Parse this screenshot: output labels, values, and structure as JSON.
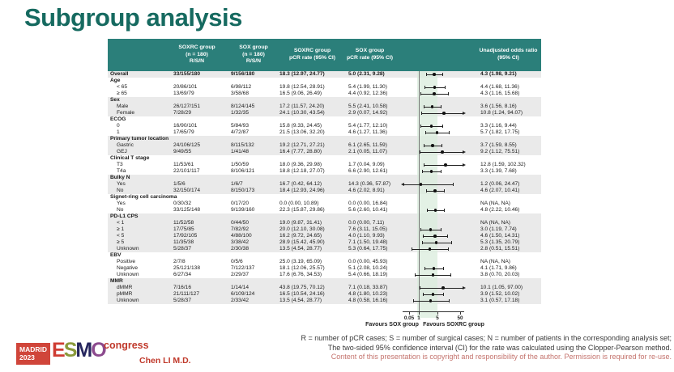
{
  "title": "Subgroup analysis",
  "colors": {
    "header_teal": "#2b7f7a",
    "title_teal": "#166a60",
    "row_shade": "#eaeaea",
    "band_green": "#d9ecdc",
    "accent_red": "#c0392b",
    "disclaimer_red": "#c4736d"
  },
  "table_headers": {
    "soxrc": [
      "SOXRC group",
      "(n = 180)",
      "R/S/N"
    ],
    "sox": [
      "SOX group",
      "(n = 180)",
      "R/S/N"
    ],
    "soxrc_pcr": [
      "SOXRC group",
      "pCR rate (95% CI)"
    ],
    "sox_pcr": [
      "SOX group",
      "pCR rate (95% CI)"
    ],
    "odds": [
      "Unadjusted odds ratio",
      "(95% CI)"
    ]
  },
  "chart_data": {
    "type": "table",
    "subtype": "forest_plot",
    "or_axis": {
      "scale": "log",
      "ticks": [
        0.05,
        1,
        5,
        50
      ],
      "ref_line": 1
    },
    "columns": [
      "Subgroup",
      "SOXRC group (n = 180) R/S/N",
      "SOX group (n = 180) R/S/N",
      "SOXRC group pCR rate (95% CI)",
      "SOX group pCR rate (95% CI)",
      "Unadjusted odds ratio (95% CI)"
    ],
    "rows": [
      {
        "type": "overall",
        "label": "Overall",
        "soxrc_rsn": "33/155/180",
        "sox_rsn": "9/156/180",
        "soxrc_pcr": "18.3 (12.97, 24.77)",
        "sox_pcr": "5.0 (2.31, 9.28)",
        "or_text": "4.3 (1.98, 9.21)",
        "or": 4.3,
        "lo": 1.98,
        "hi": 9.21,
        "shaded": true
      },
      {
        "type": "group",
        "label": "Age",
        "shaded": false
      },
      {
        "type": "data",
        "label": "< 65",
        "soxrc_rsn": "20/86/101",
        "sox_rsn": "6/98/112",
        "soxrc_pcr": "19.8 (12.54, 28.91)",
        "sox_pcr": "5.4 (1.99, 11.30)",
        "or_text": "4.4 (1.68, 11.36)",
        "or": 4.4,
        "lo": 1.68,
        "hi": 11.36,
        "shaded": false
      },
      {
        "type": "data",
        "label": "≥ 65",
        "soxrc_rsn": "13/69/79",
        "sox_rsn": "3/58/68",
        "soxrc_pcr": "16.5 (9.06, 26.49)",
        "sox_pcr": "4.4 (0.92, 12.36)",
        "or_text": "4.3 (1.16, 15.68)",
        "or": 4.3,
        "lo": 1.16,
        "hi": 15.68,
        "shaded": false
      },
      {
        "type": "group",
        "label": "Sex",
        "shaded": true
      },
      {
        "type": "data",
        "label": "Male",
        "soxrc_rsn": "26/127/151",
        "sox_rsn": "8/124/145",
        "soxrc_pcr": "17.2 (11.57, 24.20)",
        "sox_pcr": "5.5 (2.41, 10.58)",
        "or_text": "3.6 (1.56, 8.16)",
        "or": 3.6,
        "lo": 1.56,
        "hi": 8.16,
        "shaded": true
      },
      {
        "type": "data",
        "label": "Female",
        "soxrc_rsn": "7/28/29",
        "sox_rsn": "1/32/35",
        "soxrc_pcr": "24.1 (10.30, 43.54)",
        "sox_pcr": "2.9 (0.07, 14.92)",
        "or_text": "10.8 (1.24, 94.07)",
        "or": 10.8,
        "lo": 1.24,
        "hi": 94.07,
        "shaded": true
      },
      {
        "type": "group",
        "label": "ECOG",
        "shaded": false
      },
      {
        "type": "data",
        "label": "0",
        "soxrc_rsn": "16/90/101",
        "sox_rsn": "5/84/93",
        "soxrc_pcr": "15.8 (9.33, 24.45)",
        "sox_pcr": "5.4 (1.77, 12.10)",
        "or_text": "3.3 (1.16, 9.44)",
        "or": 3.3,
        "lo": 1.16,
        "hi": 9.44,
        "shaded": false
      },
      {
        "type": "data",
        "label": "1",
        "soxrc_rsn": "17/65/79",
        "sox_rsn": "4/72/87",
        "soxrc_pcr": "21.5 (13.06, 32.20)",
        "sox_pcr": "4.6 (1.27, 11.36)",
        "or_text": "5.7 (1.82, 17.75)",
        "or": 5.7,
        "lo": 1.82,
        "hi": 17.75,
        "shaded": false
      },
      {
        "type": "group",
        "label": "Primary tumor location",
        "shaded": true
      },
      {
        "type": "data",
        "label": "Gastric",
        "soxrc_rsn": "24/106/125",
        "sox_rsn": "8/115/132",
        "soxrc_pcr": "19.2 (12.71, 27.21)",
        "sox_pcr": "6.1 (2.65, 11.59)",
        "or_text": "3.7 (1.59, 8.55)",
        "or": 3.7,
        "lo": 1.59,
        "hi": 8.55,
        "shaded": true
      },
      {
        "type": "data",
        "label": "GEJ",
        "soxrc_rsn": "9/49/55",
        "sox_rsn": "1/41/48",
        "soxrc_pcr": "16.4 (7.77, 28.80)",
        "sox_pcr": "2.1 (0.05, 11.07)",
        "or_text": "9.2 (1.12, 75.51)",
        "or": 9.2,
        "lo": 1.12,
        "hi": 75.51,
        "shaded": true
      },
      {
        "type": "group",
        "label": "Clinical T stage",
        "shaded": false
      },
      {
        "type": "data",
        "label": "T3",
        "soxrc_rsn": "11/53/61",
        "sox_rsn": "1/50/59",
        "soxrc_pcr": "18.0 (9.36, 29.98)",
        "sox_pcr": "1.7 (0.04, 9.09)",
        "or_text": "12.8 (1.59, 102.32)",
        "or": 12.8,
        "lo": 1.59,
        "hi": 102.32,
        "shaded": false
      },
      {
        "type": "data",
        "label": "T4a",
        "soxrc_rsn": "22/101/117",
        "sox_rsn": "8/106/121",
        "soxrc_pcr": "18.8 (12.18, 27.07)",
        "sox_pcr": "6.6 (2.90, 12.61)",
        "or_text": "3.3 (1.39, 7.68)",
        "or": 3.3,
        "lo": 1.39,
        "hi": 7.68,
        "shaded": false
      },
      {
        "type": "group",
        "label": "Bulky N",
        "shaded": true
      },
      {
        "type": "data",
        "label": "Yes",
        "soxrc_rsn": "1/5/6",
        "sox_rsn": "1/6/7",
        "soxrc_pcr": "16.7 (0.42, 64.12)",
        "sox_pcr": "14.3 (0.36, 57.87)",
        "or_text": "1.2 (0.06, 24.47)",
        "or": 1.2,
        "lo": 0.06,
        "hi": 24.47,
        "shaded": true
      },
      {
        "type": "data",
        "label": "No",
        "soxrc_rsn": "32/150/174",
        "sox_rsn": "8/150/173",
        "soxrc_pcr": "18.4 (12.93, 24.96)",
        "sox_pcr": "4.6 (2.02, 8.91)",
        "or_text": "4.6 (2.07, 10.41)",
        "or": 4.6,
        "lo": 2.07,
        "hi": 10.41,
        "shaded": true
      },
      {
        "type": "group",
        "label": "Signet-ring cell carcinoma",
        "shaded": false
      },
      {
        "type": "data",
        "label": "Yes",
        "soxrc_rsn": "0/30/32",
        "sox_rsn": "0/17/20",
        "soxrc_pcr": "0.0 (0.00, 10.89)",
        "sox_pcr": "0.0 (0.00, 16.84)",
        "or_text": "NA (NA, NA)",
        "or": null,
        "lo": null,
        "hi": null,
        "shaded": false
      },
      {
        "type": "data",
        "label": "No",
        "soxrc_rsn": "33/125/148",
        "sox_rsn": "9/139/160",
        "soxrc_pcr": "22.3 (15.87, 29.86)",
        "sox_pcr": "5.6 (2.60, 10.41)",
        "or_text": "4.8 (2.22, 10.46)",
        "or": 4.8,
        "lo": 2.22,
        "hi": 10.46,
        "shaded": false
      },
      {
        "type": "group",
        "label": "PD-L1 CPS",
        "shaded": true
      },
      {
        "type": "data",
        "label": "< 1",
        "soxrc_rsn": "11/52/58",
        "sox_rsn": "0/44/50",
        "soxrc_pcr": "19.0 (9.87, 31.41)",
        "sox_pcr": "0.0 (0.00, 7.11)",
        "or_text": "NA (NA, NA)",
        "or": null,
        "lo": null,
        "hi": null,
        "shaded": true
      },
      {
        "type": "data",
        "label": "≥ 1",
        "soxrc_rsn": "17/75/85",
        "sox_rsn": "7/82/92",
        "soxrc_pcr": "20.0 (12.10, 30.08)",
        "sox_pcr": "7.6 (3.11, 15.05)",
        "or_text": "3.0 (1.19, 7.74)",
        "or": 3.0,
        "lo": 1.19,
        "hi": 7.74,
        "shaded": true
      },
      {
        "type": "data",
        "label": "< 5",
        "soxrc_rsn": "17/92/105",
        "sox_rsn": "4/88/100",
        "soxrc_pcr": "16.2 (9.72, 24.65)",
        "sox_pcr": "4.0 (1.10, 9.93)",
        "or_text": "4.6 (1.50, 14.31)",
        "or": 4.6,
        "lo": 1.5,
        "hi": 14.31,
        "shaded": true
      },
      {
        "type": "data",
        "label": "≥ 5",
        "soxrc_rsn": "11/35/38",
        "sox_rsn": "3/38/42",
        "soxrc_pcr": "28.9 (15.42, 45.90)",
        "sox_pcr": "7.1 (1.50, 19.48)",
        "or_text": "5.3 (1.35, 20.79)",
        "or": 5.3,
        "lo": 1.35,
        "hi": 20.79,
        "shaded": true
      },
      {
        "type": "data",
        "label": "Unknown",
        "soxrc_rsn": "5/28/37",
        "sox_rsn": "2/30/38",
        "soxrc_pcr": "13.5 (4.54, 28.77)",
        "sox_pcr": "5.3 (0.64, 17.75)",
        "or_text": "2.8 (0.51, 15.51)",
        "or": 2.8,
        "lo": 0.51,
        "hi": 15.51,
        "shaded": true
      },
      {
        "type": "group",
        "label": "EBV",
        "shaded": false
      },
      {
        "type": "data",
        "label": "Positive",
        "soxrc_rsn": "2/7/8",
        "sox_rsn": "0/5/6",
        "soxrc_pcr": "25.0 (3.19, 65.09)",
        "sox_pcr": "0.0 (0.00, 45.93)",
        "or_text": "NA (NA, NA)",
        "or": null,
        "lo": null,
        "hi": null,
        "shaded": false
      },
      {
        "type": "data",
        "label": "Negative",
        "soxrc_rsn": "25/121/138",
        "sox_rsn": "7/122/137",
        "soxrc_pcr": "18.1 (12.06, 25.57)",
        "sox_pcr": "5.1 (2.08, 10.24)",
        "or_text": "4.1 (1.71, 9.86)",
        "or": 4.1,
        "lo": 1.71,
        "hi": 9.86,
        "shaded": false
      },
      {
        "type": "data",
        "label": "Unknown",
        "soxrc_rsn": "6/27/34",
        "sox_rsn": "2/29/37",
        "soxrc_pcr": "17.6 (6.76, 34.53)",
        "sox_pcr": "5.4 (0.66, 18.19)",
        "or_text": "3.8 (0.70, 20.03)",
        "or": 3.8,
        "lo": 0.7,
        "hi": 20.03,
        "shaded": false
      },
      {
        "type": "group",
        "label": "MMR",
        "shaded": true
      },
      {
        "type": "data",
        "label": "dMMR",
        "soxrc_rsn": "7/16/16",
        "sox_rsn": "1/14/14",
        "soxrc_pcr": "43.8 (19.75, 70.12)",
        "sox_pcr": "7.1 (0.18, 33.87)",
        "or_text": "10.1 (1.05, 97.00)",
        "or": 10.1,
        "lo": 1.05,
        "hi": 97.0,
        "shaded": true
      },
      {
        "type": "data",
        "label": "pMMR",
        "soxrc_rsn": "21/111/127",
        "sox_rsn": "6/109/124",
        "soxrc_pcr": "16.5 (10.54, 24.16)",
        "sox_pcr": "4.8 (1.80, 10.23)",
        "or_text": "3.9 (1.52, 10.02)",
        "or": 3.9,
        "lo": 1.52,
        "hi": 10.02,
        "shaded": true
      },
      {
        "type": "data",
        "label": "Unknown",
        "soxrc_rsn": "5/28/37",
        "sox_rsn": "2/33/42",
        "soxrc_pcr": "13.5 (4.54, 28.77)",
        "sox_pcr": "4.8 (0.58, 16.16)",
        "or_text": "3.1 (0.57, 17.18)",
        "or": 3.1,
        "lo": 0.57,
        "hi": 17.18,
        "shaded": true
      }
    ]
  },
  "axis": {
    "tick_005": "0.05",
    "tick_1": "1",
    "tick_5": "5",
    "tick_50": "50",
    "favours_left": "Favours SOX group",
    "favours_right": "Favours SOXRC group"
  },
  "footnotes": {
    "line1": "R = number of pCR cases; S = number of surgical cases; N = number of patients in the corresponding analysis set;",
    "line2": "The two-sided 95% confidence interval (CI) for the rate was calculated using the Clopper-Pearson method.",
    "line3": "Content of this presentation is copyright and responsibility of the author. Permission is required for re-use."
  },
  "logo": {
    "city": "MADRID",
    "year": "2023",
    "e": "E",
    "s": "S",
    "m": "M",
    "o": "O",
    "congress": "congress"
  },
  "author": "Chen LI M.D."
}
